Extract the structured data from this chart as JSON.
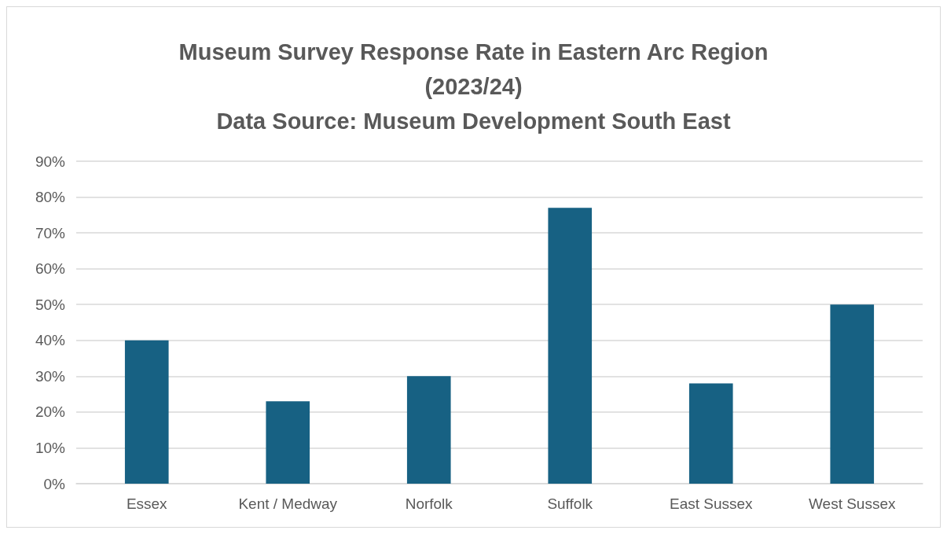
{
  "chart_data": {
    "type": "bar",
    "title": "Museum Survey Response Rate in Eastern Arc Region\n(2023/24)\nData Source: Museum Development South East",
    "categories": [
      "Essex",
      "Kent / Medway",
      "Norfolk",
      "Suffolk",
      "East Sussex",
      "West Sussex"
    ],
    "values": [
      40,
      23,
      30,
      77,
      28,
      50
    ],
    "color": "#176183",
    "ylim": [
      0,
      90
    ],
    "yticks": [
      {
        "value": 0,
        "label": "0%"
      },
      {
        "value": 10,
        "label": "10%"
      },
      {
        "value": 20,
        "label": "20%"
      },
      {
        "value": 30,
        "label": "30%"
      },
      {
        "value": 40,
        "label": "40%"
      },
      {
        "value": 50,
        "label": "50%"
      },
      {
        "value": 60,
        "label": "60%"
      },
      {
        "value": 70,
        "label": "70%"
      },
      {
        "value": 80,
        "label": "80%"
      },
      {
        "value": 90,
        "label": "90%"
      }
    ],
    "grid": true
  }
}
